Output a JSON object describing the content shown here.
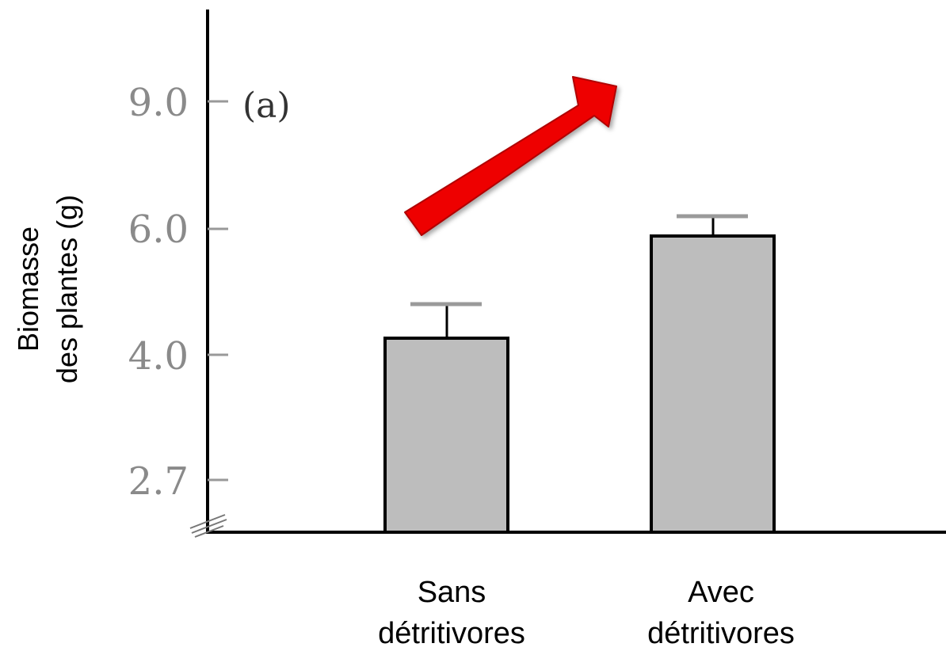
{
  "chart_data": {
    "type": "bar",
    "panel_label": "(a)",
    "ylabel_lines": [
      "Biomasse",
      "des plantes (g)"
    ],
    "categories": [
      {
        "lines": [
          "Sans",
          "détritivores"
        ]
      },
      {
        "lines": [
          "Avec",
          "détritivores"
        ]
      }
    ],
    "values": [
      4.3,
      5.9
    ],
    "error_upper": [
      4.8,
      6.2
    ],
    "yticks": [
      "9.0",
      "6.0",
      "4.0",
      "2.7"
    ],
    "axis_break": true,
    "annotation": "red arrow pointing up-right, indicating increase",
    "colors": {
      "bar_fill": "#bdbdbd",
      "bar_stroke": "#000000",
      "arrow": "#ee0000",
      "tick": "#8a8a8a",
      "error_cap": "#9a9a9a"
    }
  }
}
